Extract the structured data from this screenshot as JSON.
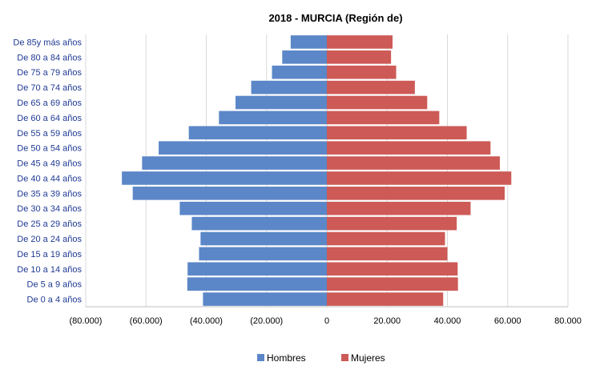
{
  "chart_data": {
    "type": "bar",
    "orientation": "horizontal",
    "title": "2018 - MURCIA (Región de)",
    "categories": [
      "De 85y más años",
      "De 80 a 84 años",
      "De 75 a 79 años",
      "De 70 a 74 años",
      "De 65 a 69 años",
      "De 60 a 64 años",
      "De 55 a 59 años",
      "De 50 a 54 años",
      "De 45 a 49 años",
      "De 40 a 44 años",
      "De 35 a 39 años",
      "De 30 a 34 años",
      "De 25 a 29 años",
      "De 20 a 24 años",
      "De 15 a 19 años",
      "De 10 a 14 años",
      "De 5 a 9 años",
      "De 0 a 4 años"
    ],
    "series": [
      {
        "name": "Hombres",
        "color": "#5b87c8",
        "values": [
          -12000,
          -14800,
          -18200,
          -25100,
          -30300,
          -35800,
          -45800,
          -55800,
          -61300,
          -68000,
          -64400,
          -48800,
          -44800,
          -41900,
          -42400,
          -46200,
          -46300,
          -41100
        ]
      },
      {
        "name": "Mujeres",
        "color": "#cd5a56",
        "values": [
          21800,
          21300,
          23000,
          29200,
          33300,
          37300,
          46400,
          54300,
          57400,
          61200,
          59000,
          47700,
          43100,
          39200,
          40000,
          43400,
          43500,
          38600
        ]
      }
    ],
    "xlim": [
      -80000,
      80000
    ],
    "xticks": [
      -80000,
      -60000,
      -40000,
      -20000,
      0,
      20000,
      40000,
      60000,
      80000
    ],
    "xtick_labels": [
      "(80.000)",
      "(60.000)",
      "(40.000)",
      "(20.000)",
      "0",
      "20.000",
      "40.000",
      "60.000",
      "80.000"
    ],
    "grid": "vertical",
    "legend_position": "bottom"
  }
}
